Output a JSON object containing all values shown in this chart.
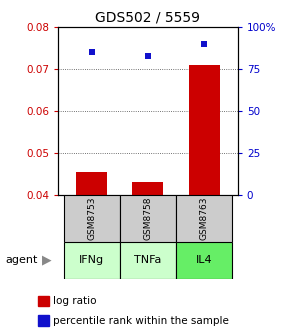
{
  "title": "GDS502 / 5559",
  "samples": [
    "GSM8753",
    "GSM8758",
    "GSM8763"
  ],
  "agents": [
    "IFNg",
    "TNFa",
    "IL4"
  ],
  "log_ratios": [
    0.0455,
    0.043,
    0.071
  ],
  "percentile_ranks_pct": [
    85,
    82.5,
    90
  ],
  "bar_color": "#cc0000",
  "dot_color": "#1111cc",
  "ylim_left": [
    0.04,
    0.08
  ],
  "ylim_right": [
    0,
    100
  ],
  "yticks_left": [
    0.04,
    0.05,
    0.06,
    0.07,
    0.08
  ],
  "ytick_labels_left": [
    "0.04",
    "0.05",
    "0.06",
    "0.07",
    "0.08"
  ],
  "yticks_right": [
    0,
    25,
    50,
    75,
    100
  ],
  "ytick_labels_right": [
    "0",
    "25",
    "50",
    "75",
    "100%"
  ],
  "agent_colors": [
    "#ccffcc",
    "#ccffcc",
    "#66ee66"
  ],
  "sample_box_color": "#cccccc",
  "baseline": 0.04
}
